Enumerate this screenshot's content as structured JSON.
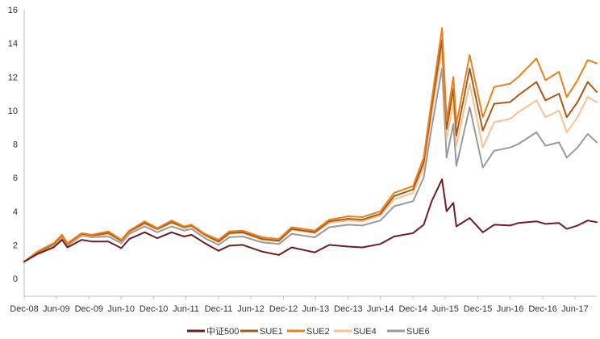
{
  "chart_data": {
    "type": "line",
    "title": "",
    "xlabel": "",
    "ylabel": "",
    "ylim": [
      0,
      16
    ],
    "yticks": [
      0,
      2,
      4,
      6,
      8,
      10,
      12,
      14,
      16
    ],
    "xlim": [
      "2008-12-31",
      "2017-10-31"
    ],
    "xticks": [
      {
        "date": "2008-12-31",
        "label": "Dec-08"
      },
      {
        "date": "2009-06-30",
        "label": "Jun-09"
      },
      {
        "date": "2009-12-31",
        "label": "Dec-09"
      },
      {
        "date": "2010-06-30",
        "label": "Jun-10"
      },
      {
        "date": "2010-12-31",
        "label": "Dec-10"
      },
      {
        "date": "2011-06-30",
        "label": "Jun-11"
      },
      {
        "date": "2011-12-31",
        "label": "Dec-11"
      },
      {
        "date": "2012-06-30",
        "label": "Jun-12"
      },
      {
        "date": "2012-12-31",
        "label": "Dec-12"
      },
      {
        "date": "2013-06-30",
        "label": "Jun-13"
      },
      {
        "date": "2013-12-31",
        "label": "Dec-13"
      },
      {
        "date": "2014-06-30",
        "label": "Jun-14"
      },
      {
        "date": "2014-12-31",
        "label": "Dec-14"
      },
      {
        "date": "2015-06-30",
        "label": "Jun-15"
      },
      {
        "date": "2015-12-31",
        "label": "Dec-15"
      },
      {
        "date": "2016-06-30",
        "label": "Jun-16"
      },
      {
        "date": "2016-12-31",
        "label": "Dec-16"
      },
      {
        "date": "2017-06-30",
        "label": "Jun-17"
      }
    ],
    "grid": false,
    "legend_position": "bottom",
    "series": [
      {
        "name": "中证500",
        "color": "#6b1f24",
        "points": [
          [
            "2008-12-31",
            1.0
          ],
          [
            "2009-03-15",
            1.45
          ],
          [
            "2009-06-15",
            1.85
          ],
          [
            "2009-08-01",
            2.3
          ],
          [
            "2009-09-01",
            1.85
          ],
          [
            "2009-11-20",
            2.3
          ],
          [
            "2010-01-15",
            2.2
          ],
          [
            "2010-04-20",
            2.2
          ],
          [
            "2010-07-01",
            1.8
          ],
          [
            "2010-08-15",
            2.35
          ],
          [
            "2010-11-10",
            2.75
          ],
          [
            "2011-01-20",
            2.4
          ],
          [
            "2011-04-10",
            2.75
          ],
          [
            "2011-06-20",
            2.5
          ],
          [
            "2011-08-01",
            2.6
          ],
          [
            "2011-10-15",
            2.1
          ],
          [
            "2011-12-31",
            1.65
          ],
          [
            "2012-03-01",
            1.95
          ],
          [
            "2012-05-15",
            2.0
          ],
          [
            "2012-09-01",
            1.6
          ],
          [
            "2012-12-05",
            1.4
          ],
          [
            "2013-02-15",
            1.85
          ],
          [
            "2013-06-25",
            1.55
          ],
          [
            "2013-09-15",
            2.0
          ],
          [
            "2013-12-31",
            1.9
          ],
          [
            "2014-03-20",
            1.85
          ],
          [
            "2014-06-30",
            2.05
          ],
          [
            "2014-09-15",
            2.5
          ],
          [
            "2014-12-31",
            2.7
          ],
          [
            "2015-03-01",
            3.2
          ],
          [
            "2015-04-15",
            4.6
          ],
          [
            "2015-06-12",
            5.9
          ],
          [
            "2015-07-08",
            4.0
          ],
          [
            "2015-08-15",
            4.5
          ],
          [
            "2015-09-01",
            3.1
          ],
          [
            "2015-11-15",
            3.6
          ],
          [
            "2016-01-28",
            2.75
          ],
          [
            "2016-04-01",
            3.2
          ],
          [
            "2016-06-30",
            3.15
          ],
          [
            "2016-08-15",
            3.3
          ],
          [
            "2016-11-25",
            3.4
          ],
          [
            "2017-01-15",
            3.25
          ],
          [
            "2017-04-01",
            3.3
          ],
          [
            "2017-05-15",
            2.95
          ],
          [
            "2017-07-15",
            3.15
          ],
          [
            "2017-09-10",
            3.45
          ],
          [
            "2017-10-31",
            3.35
          ]
        ]
      },
      {
        "name": "SUE1",
        "color": "#a65a17",
        "points": [
          [
            "2008-12-31",
            1.0
          ],
          [
            "2009-03-15",
            1.55
          ],
          [
            "2009-06-15",
            2.05
          ],
          [
            "2009-08-01",
            2.55
          ],
          [
            "2009-09-01",
            2.05
          ],
          [
            "2009-11-20",
            2.65
          ],
          [
            "2010-01-15",
            2.55
          ],
          [
            "2010-04-20",
            2.7
          ],
          [
            "2010-07-01",
            2.25
          ],
          [
            "2010-08-15",
            2.8
          ],
          [
            "2010-11-10",
            3.3
          ],
          [
            "2011-01-20",
            2.95
          ],
          [
            "2011-04-10",
            3.35
          ],
          [
            "2011-06-20",
            3.05
          ],
          [
            "2011-08-01",
            3.15
          ],
          [
            "2011-10-15",
            2.6
          ],
          [
            "2011-12-31",
            2.2
          ],
          [
            "2012-03-01",
            2.7
          ],
          [
            "2012-05-15",
            2.75
          ],
          [
            "2012-09-01",
            2.35
          ],
          [
            "2012-12-05",
            2.25
          ],
          [
            "2013-02-15",
            2.95
          ],
          [
            "2013-06-25",
            2.75
          ],
          [
            "2013-09-15",
            3.4
          ],
          [
            "2013-12-31",
            3.55
          ],
          [
            "2014-03-20",
            3.5
          ],
          [
            "2014-06-30",
            3.85
          ],
          [
            "2014-09-15",
            4.9
          ],
          [
            "2014-12-31",
            5.3
          ],
          [
            "2015-03-01",
            6.9
          ],
          [
            "2015-04-15",
            10.2
          ],
          [
            "2015-06-12",
            14.2
          ],
          [
            "2015-07-08",
            8.9
          ],
          [
            "2015-08-15",
            11.3
          ],
          [
            "2015-09-01",
            8.5
          ],
          [
            "2015-11-15",
            12.5
          ],
          [
            "2016-01-28",
            8.8
          ],
          [
            "2016-04-01",
            10.4
          ],
          [
            "2016-06-30",
            10.5
          ],
          [
            "2016-08-15",
            10.9
          ],
          [
            "2016-11-25",
            11.7
          ],
          [
            "2017-01-15",
            10.6
          ],
          [
            "2017-04-01",
            11.0
          ],
          [
            "2017-05-15",
            9.6
          ],
          [
            "2017-07-15",
            10.5
          ],
          [
            "2017-09-10",
            11.7
          ],
          [
            "2017-10-31",
            11.1
          ]
        ]
      },
      {
        "name": "SUE2",
        "color": "#e8801e",
        "points": [
          [
            "2008-12-31",
            1.0
          ],
          [
            "2009-03-15",
            1.6
          ],
          [
            "2009-06-15",
            2.1
          ],
          [
            "2009-08-01",
            2.6
          ],
          [
            "2009-09-01",
            2.1
          ],
          [
            "2009-11-20",
            2.7
          ],
          [
            "2010-01-15",
            2.6
          ],
          [
            "2010-04-20",
            2.8
          ],
          [
            "2010-07-01",
            2.3
          ],
          [
            "2010-08-15",
            2.85
          ],
          [
            "2010-11-10",
            3.4
          ],
          [
            "2011-01-20",
            3.0
          ],
          [
            "2011-04-10",
            3.45
          ],
          [
            "2011-06-20",
            3.1
          ],
          [
            "2011-08-01",
            3.2
          ],
          [
            "2011-10-15",
            2.65
          ],
          [
            "2011-12-31",
            2.3
          ],
          [
            "2012-03-01",
            2.8
          ],
          [
            "2012-05-15",
            2.85
          ],
          [
            "2012-09-01",
            2.45
          ],
          [
            "2012-12-05",
            2.35
          ],
          [
            "2013-02-15",
            3.05
          ],
          [
            "2013-06-25",
            2.85
          ],
          [
            "2013-09-15",
            3.5
          ],
          [
            "2013-12-31",
            3.7
          ],
          [
            "2014-03-20",
            3.65
          ],
          [
            "2014-06-30",
            4.0
          ],
          [
            "2014-09-15",
            5.1
          ],
          [
            "2014-12-31",
            5.5
          ],
          [
            "2015-03-01",
            7.2
          ],
          [
            "2015-04-15",
            10.6
          ],
          [
            "2015-06-12",
            14.9
          ],
          [
            "2015-07-08",
            9.4
          ],
          [
            "2015-08-15",
            12.0
          ],
          [
            "2015-09-01",
            9.2
          ],
          [
            "2015-11-15",
            13.3
          ],
          [
            "2016-01-28",
            9.6
          ],
          [
            "2016-04-01",
            11.4
          ],
          [
            "2016-06-30",
            11.6
          ],
          [
            "2016-08-15",
            12.0
          ],
          [
            "2016-11-25",
            13.1
          ],
          [
            "2017-01-15",
            11.8
          ],
          [
            "2017-04-01",
            12.3
          ],
          [
            "2017-05-15",
            10.8
          ],
          [
            "2017-07-15",
            11.8
          ],
          [
            "2017-09-10",
            13.0
          ],
          [
            "2017-10-31",
            12.8
          ]
        ]
      },
      {
        "name": "SUE4",
        "color": "#f7c191",
        "points": [
          [
            "2008-12-31",
            1.0
          ],
          [
            "2009-03-15",
            1.55
          ],
          [
            "2009-06-15",
            2.0
          ],
          [
            "2009-08-01",
            2.5
          ],
          [
            "2009-09-01",
            2.0
          ],
          [
            "2009-11-20",
            2.6
          ],
          [
            "2010-01-15",
            2.5
          ],
          [
            "2010-04-20",
            2.65
          ],
          [
            "2010-07-01",
            2.2
          ],
          [
            "2010-08-15",
            2.75
          ],
          [
            "2010-11-10",
            3.25
          ],
          [
            "2011-01-20",
            2.9
          ],
          [
            "2011-04-10",
            3.3
          ],
          [
            "2011-06-20",
            3.0
          ],
          [
            "2011-08-01",
            3.1
          ],
          [
            "2011-10-15",
            2.55
          ],
          [
            "2011-12-31",
            2.15
          ],
          [
            "2012-03-01",
            2.65
          ],
          [
            "2012-05-15",
            2.7
          ],
          [
            "2012-09-01",
            2.3
          ],
          [
            "2012-12-05",
            2.2
          ],
          [
            "2013-02-15",
            2.9
          ],
          [
            "2013-06-25",
            2.7
          ],
          [
            "2013-09-15",
            3.3
          ],
          [
            "2013-12-31",
            3.45
          ],
          [
            "2014-03-20",
            3.4
          ],
          [
            "2014-06-30",
            3.75
          ],
          [
            "2014-09-15",
            4.7
          ],
          [
            "2014-12-31",
            5.1
          ],
          [
            "2015-03-01",
            6.6
          ],
          [
            "2015-04-15",
            9.8
          ],
          [
            "2015-06-12",
            13.6
          ],
          [
            "2015-07-08",
            8.3
          ],
          [
            "2015-08-15",
            10.5
          ],
          [
            "2015-09-01",
            7.9
          ],
          [
            "2015-11-15",
            11.6
          ],
          [
            "2016-01-28",
            7.8
          ],
          [
            "2016-04-01",
            9.3
          ],
          [
            "2016-06-30",
            9.5
          ],
          [
            "2016-08-15",
            9.9
          ],
          [
            "2016-11-25",
            10.6
          ],
          [
            "2017-01-15",
            9.6
          ],
          [
            "2017-04-01",
            10.0
          ],
          [
            "2017-05-15",
            8.7
          ],
          [
            "2017-07-15",
            9.6
          ],
          [
            "2017-09-10",
            10.8
          ],
          [
            "2017-10-31",
            10.5
          ]
        ]
      },
      {
        "name": "SUE6",
        "color": "#9a9a9a",
        "points": [
          [
            "2008-12-31",
            1.0
          ],
          [
            "2009-03-15",
            1.5
          ],
          [
            "2009-06-15",
            1.95
          ],
          [
            "2009-08-01",
            2.45
          ],
          [
            "2009-09-01",
            1.95
          ],
          [
            "2009-11-20",
            2.55
          ],
          [
            "2010-01-15",
            2.45
          ],
          [
            "2010-04-20",
            2.5
          ],
          [
            "2010-07-01",
            2.1
          ],
          [
            "2010-08-15",
            2.65
          ],
          [
            "2010-11-10",
            3.1
          ],
          [
            "2011-01-20",
            2.75
          ],
          [
            "2011-04-10",
            3.1
          ],
          [
            "2011-06-20",
            2.85
          ],
          [
            "2011-08-01",
            2.95
          ],
          [
            "2011-10-15",
            2.4
          ],
          [
            "2011-12-31",
            2.0
          ],
          [
            "2012-03-01",
            2.45
          ],
          [
            "2012-05-15",
            2.5
          ],
          [
            "2012-09-01",
            2.15
          ],
          [
            "2012-12-05",
            2.05
          ],
          [
            "2013-02-15",
            2.65
          ],
          [
            "2013-06-25",
            2.45
          ],
          [
            "2013-09-15",
            3.05
          ],
          [
            "2013-12-31",
            3.2
          ],
          [
            "2014-03-20",
            3.15
          ],
          [
            "2014-06-30",
            3.45
          ],
          [
            "2014-09-15",
            4.3
          ],
          [
            "2014-12-31",
            4.6
          ],
          [
            "2015-03-01",
            6.0
          ],
          [
            "2015-04-15",
            9.0
          ],
          [
            "2015-06-12",
            12.5
          ],
          [
            "2015-07-08",
            7.2
          ],
          [
            "2015-08-15",
            9.2
          ],
          [
            "2015-09-01",
            6.7
          ],
          [
            "2015-11-15",
            10.2
          ],
          [
            "2016-01-28",
            6.6
          ],
          [
            "2016-04-01",
            7.6
          ],
          [
            "2016-06-30",
            7.8
          ],
          [
            "2016-08-15",
            8.0
          ],
          [
            "2016-11-25",
            8.7
          ],
          [
            "2017-01-15",
            7.9
          ],
          [
            "2017-04-01",
            8.1
          ],
          [
            "2017-05-15",
            7.2
          ],
          [
            "2017-07-15",
            7.8
          ],
          [
            "2017-09-10",
            8.6
          ],
          [
            "2017-10-31",
            8.1
          ]
        ]
      }
    ]
  }
}
